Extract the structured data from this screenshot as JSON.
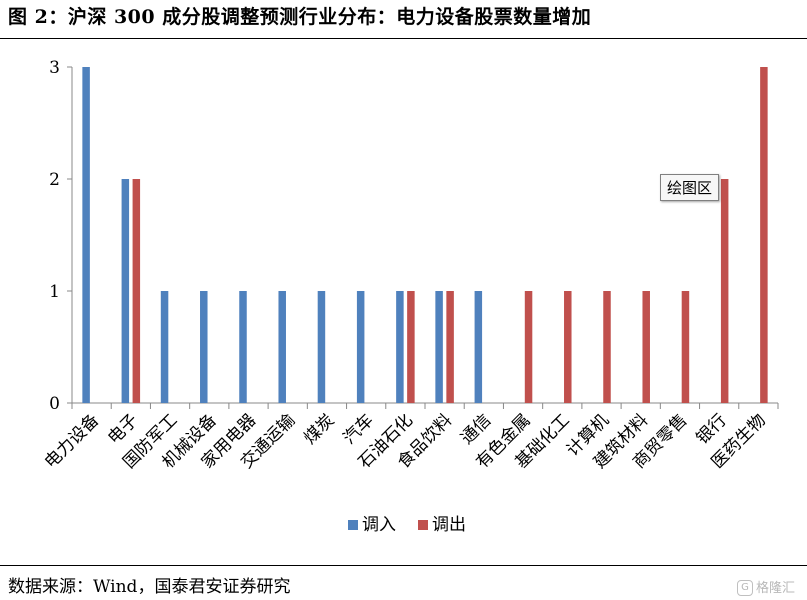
{
  "header": {
    "title": "图 2：沪深 300 成分股调整预测行业分布：电力设备股票数量增加"
  },
  "footer": {
    "source": "数据来源：Wind，国泰君安证券研究",
    "watermark": "格隆汇",
    "watermark_icon": "gelonghui-logo-icon"
  },
  "tooltip": {
    "text": "绘图区"
  },
  "colors": {
    "in": "#4F81BD",
    "out": "#C0504D"
  },
  "chart_data": {
    "type": "bar",
    "categories": [
      "电力设备",
      "电子",
      "国防军工",
      "机械设备",
      "家用电器",
      "交通运输",
      "煤炭",
      "汽车",
      "石油石化",
      "食品饮料",
      "通信",
      "有色金属",
      "基础化工",
      "计算机",
      "建筑材料",
      "商贸零售",
      "银行",
      "医药生物"
    ],
    "series": [
      {
        "name": "调入",
        "values": [
          3,
          2,
          1,
          1,
          1,
          1,
          1,
          1,
          1,
          1,
          1,
          0,
          0,
          0,
          0,
          0,
          0,
          0
        ]
      },
      {
        "name": "调出",
        "values": [
          0,
          2,
          0,
          0,
          0,
          0,
          0,
          0,
          1,
          1,
          0,
          1,
          1,
          1,
          1,
          1,
          2,
          3
        ]
      }
    ],
    "yticks": [
      0,
      1,
      2,
      3
    ],
    "ylim": [
      0,
      3
    ],
    "legend_position": "bottom",
    "grid": false
  }
}
